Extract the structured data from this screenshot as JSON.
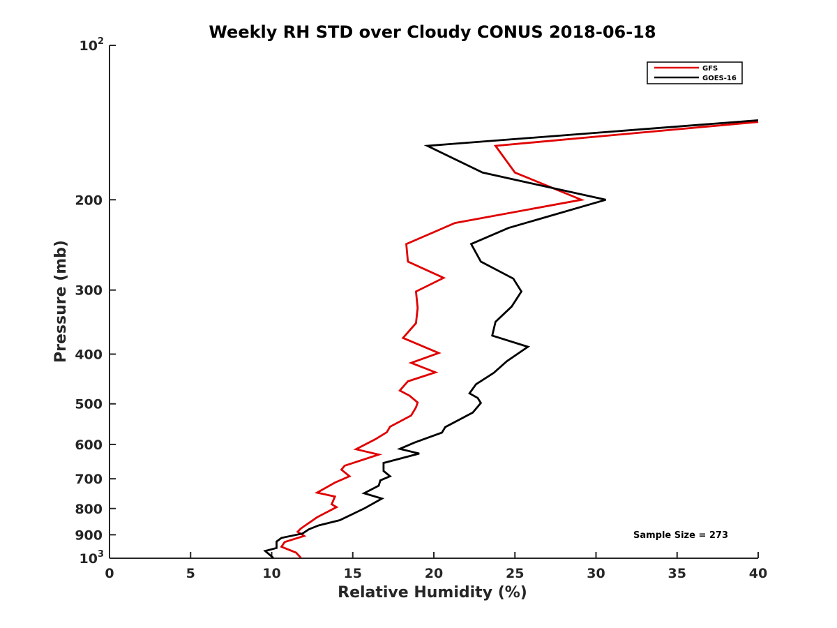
{
  "chart_data": {
    "type": "line",
    "title": "Weekly RH STD over Cloudy CONUS 2018-06-18",
    "xlabel": "Relative Humidity (%)",
    "ylabel": "Pressure (mb)",
    "xlim": [
      0,
      40
    ],
    "ylim": [
      100,
      1000
    ],
    "y_scale": "log",
    "y_reversed": true,
    "x_ticks": [
      0,
      5,
      10,
      15,
      20,
      25,
      30,
      35,
      40
    ],
    "x_tick_labels": [
      "0",
      "5",
      "10",
      "15",
      "20",
      "25",
      "30",
      "35",
      "40"
    ],
    "y_ticks": [
      100,
      200,
      300,
      400,
      500,
      600,
      700,
      800,
      900,
      1000
    ],
    "y_tick_labels": [
      {
        "base": "10",
        "sup": "2"
      },
      {
        "base": "200",
        "sup": ""
      },
      {
        "base": "300",
        "sup": ""
      },
      {
        "base": "400",
        "sup": ""
      },
      {
        "base": "500",
        "sup": ""
      },
      {
        "base": "600",
        "sup": ""
      },
      {
        "base": "700",
        "sup": ""
      },
      {
        "base": "800",
        "sup": ""
      },
      {
        "base": "900",
        "sup": ""
      },
      {
        "base": "10",
        "sup": "3"
      }
    ],
    "grid": false,
    "legend_position": "top-right",
    "annotation": "Sample Size = 273",
    "series": [
      {
        "name": "GFS",
        "color": "#e00000",
        "points": [
          [
            40.0,
            141
          ],
          [
            23.8,
            157
          ],
          [
            25.0,
            177
          ],
          [
            29.1,
            200
          ],
          [
            21.3,
            222
          ],
          [
            18.3,
            244
          ],
          [
            18.4,
            264
          ],
          [
            20.6,
            284
          ],
          [
            18.9,
            302
          ],
          [
            19.0,
            325
          ],
          [
            18.9,
            348
          ],
          [
            18.1,
            372
          ],
          [
            20.3,
            398
          ],
          [
            18.6,
            416
          ],
          [
            20.1,
            434
          ],
          [
            18.4,
            452
          ],
          [
            17.9,
            471
          ],
          [
            18.5,
            482
          ],
          [
            19.0,
            497
          ],
          [
            18.9,
            508
          ],
          [
            18.6,
            527
          ],
          [
            17.3,
            554
          ],
          [
            17.1,
            568
          ],
          [
            16.4,
            586
          ],
          [
            15.2,
            613
          ],
          [
            16.6,
            628
          ],
          [
            14.5,
            660
          ],
          [
            14.3,
            672
          ],
          [
            14.8,
            692
          ],
          [
            13.9,
            712
          ],
          [
            12.8,
            745
          ],
          [
            13.9,
            758
          ],
          [
            13.7,
            785
          ],
          [
            14.0,
            795
          ],
          [
            12.8,
            832
          ],
          [
            11.8,
            875
          ],
          [
            11.6,
            888
          ],
          [
            12.0,
            905
          ],
          [
            10.8,
            930
          ],
          [
            10.6,
            950
          ],
          [
            11.5,
            975
          ],
          [
            11.8,
            998
          ]
        ]
      },
      {
        "name": "GOES-16",
        "color": "#000000",
        "points": [
          [
            40.0,
            140
          ],
          [
            19.6,
            157
          ],
          [
            23.0,
            177
          ],
          [
            30.6,
            200
          ],
          [
            24.6,
            227
          ],
          [
            22.3,
            244
          ],
          [
            22.9,
            264
          ],
          [
            24.9,
            285
          ],
          [
            25.4,
            302
          ],
          [
            24.8,
            323
          ],
          [
            23.8,
            346
          ],
          [
            23.6,
            368
          ],
          [
            25.8,
            387
          ],
          [
            24.5,
            413
          ],
          [
            23.7,
            435
          ],
          [
            22.6,
            458
          ],
          [
            22.2,
            477
          ],
          [
            22.7,
            487
          ],
          [
            22.9,
            498
          ],
          [
            22.4,
            520
          ],
          [
            20.7,
            555
          ],
          [
            20.5,
            569
          ],
          [
            18.8,
            595
          ],
          [
            17.9,
            612
          ],
          [
            19.1,
            625
          ],
          [
            16.9,
            652
          ],
          [
            16.9,
            676
          ],
          [
            17.3,
            692
          ],
          [
            16.7,
            705
          ],
          [
            16.6,
            722
          ],
          [
            15.7,
            747
          ],
          [
            16.8,
            765
          ],
          [
            15.7,
            800
          ],
          [
            14.2,
            843
          ],
          [
            12.9,
            863
          ],
          [
            12.3,
            878
          ],
          [
            11.9,
            895
          ],
          [
            10.6,
            913
          ],
          [
            10.3,
            928
          ],
          [
            10.3,
            955
          ],
          [
            9.6,
            968
          ],
          [
            10.1,
            998
          ]
        ]
      }
    ]
  }
}
